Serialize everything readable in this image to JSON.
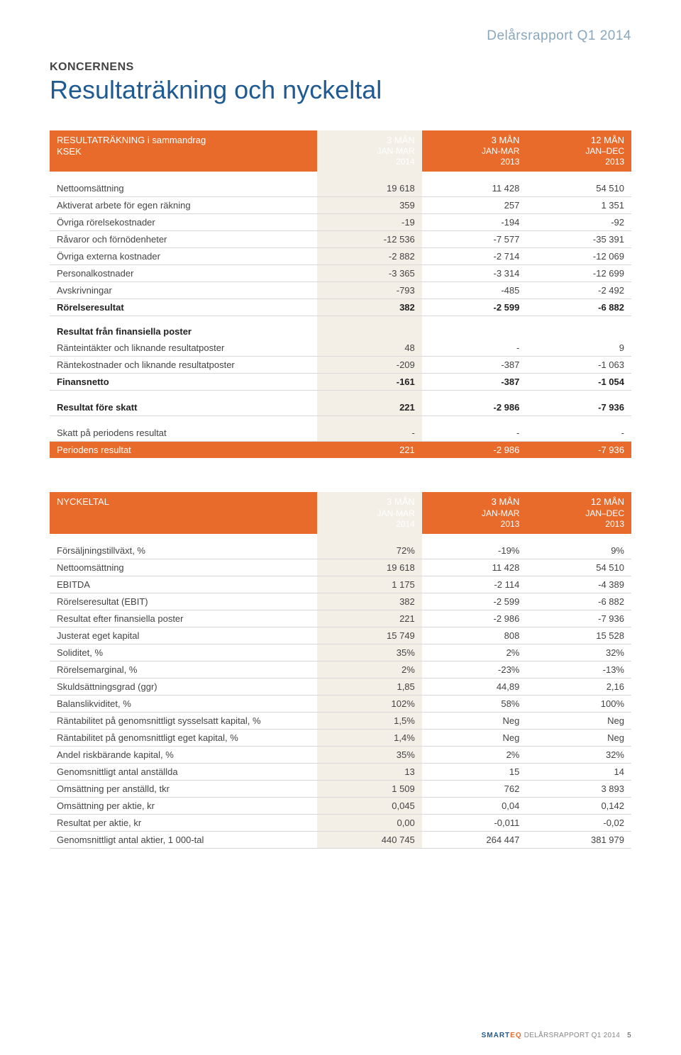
{
  "header": {
    "report_tag": "Delårsrapport Q1 2014",
    "eyebrow": "KONCERNENS",
    "title": "Resultaträkning och nyckeltal"
  },
  "table1": {
    "header": {
      "label_line1": "RESULTATRÄKNING i sammandrag",
      "label_line2": "KSEK",
      "c1_line1": "3 MÅN",
      "c1_line2": "JAN-MAR",
      "c1_line3": "2014",
      "c2_line1": "3 MÅN",
      "c2_line2": "JAN-MAR",
      "c2_line3": "2013",
      "c3_line1": "12 MÅN",
      "c3_line2": "JAN–DEC",
      "c3_line3": "2013"
    },
    "rows": [
      {
        "label": "Nettoomsättning",
        "c1": "19 618",
        "c2": "11 428",
        "c3": "54 510"
      },
      {
        "label": "Aktiverat arbete för egen räkning",
        "c1": "359",
        "c2": "257",
        "c3": "1 351"
      },
      {
        "label": "Övriga rörelsekostnader",
        "c1": "-19",
        "c2": "-194",
        "c3": "-92"
      },
      {
        "label": "Råvaror och förnödenheter",
        "c1": "-12 536",
        "c2": "-7 577",
        "c3": "-35 391"
      },
      {
        "label": "Övriga externa kostnader",
        "c1": "-2 882",
        "c2": "-2 714",
        "c3": "-12 069"
      },
      {
        "label": "Personalkostnader",
        "c1": "-3 365",
        "c2": "-3 314",
        "c3": "-12 699"
      },
      {
        "label": "Avskrivningar",
        "c1": "-793",
        "c2": "-485",
        "c3": "-2 492"
      }
    ],
    "subtotal1": {
      "label": "Rörelseresultat",
      "c1": "382",
      "c2": "-2 599",
      "c3": "-6 882"
    },
    "section2_title": "Resultat från finansiella poster",
    "rows2": [
      {
        "label": "Ränteintäkter och liknande resultatposter",
        "c1": "48",
        "c2": "-",
        "c3": "9"
      },
      {
        "label": "Räntekostnader och liknande resultatposter",
        "c1": "-209",
        "c2": "-387",
        "c3": "-1 063"
      }
    ],
    "subtotal2": {
      "label": "Finansnetto",
      "c1": "-161",
      "c2": "-387",
      "c3": "-1 054"
    },
    "pretax": {
      "label": "Resultat före skatt",
      "c1": "221",
      "c2": "-2 986",
      "c3": "-7 936"
    },
    "tax": {
      "label": "Skatt på periodens resultat",
      "c1": "-",
      "c2": "-",
      "c3": "-"
    },
    "period": {
      "label": "Periodens resultat",
      "c1": "221",
      "c2": "-2 986",
      "c3": "-7 936"
    }
  },
  "table2": {
    "header": {
      "label": "NYCKELTAL",
      "c1_line1": "3 MÅN",
      "c1_line2": "JAN-MAR",
      "c1_line3": "2014",
      "c2_line1": "3 MÅN",
      "c2_line2": "JAN-MAR",
      "c2_line3": "2013",
      "c3_line1": "12 MÅN",
      "c3_line2": "JAN–DEC",
      "c3_line3": "2013"
    },
    "rows": [
      {
        "label": "Försäljningstillväxt, %",
        "c1": "72%",
        "c2": "-19%",
        "c3": "9%"
      },
      {
        "label": "Nettoomsättning",
        "c1": "19 618",
        "c2": "11 428",
        "c3": "54 510"
      },
      {
        "label": "EBITDA",
        "c1": "1 175",
        "c2": "-2 114",
        "c3": "-4 389"
      },
      {
        "label": "Rörelseresultat (EBIT)",
        "c1": "382",
        "c2": "-2 599",
        "c3": "-6 882"
      },
      {
        "label": "Resultat efter finansiella poster",
        "c1": "221",
        "c2": "-2 986",
        "c3": "-7 936"
      },
      {
        "label": "Justerat eget kapital",
        "c1": "15 749",
        "c2": "808",
        "c3": "15 528"
      },
      {
        "label": "Soliditet, %",
        "c1": "35%",
        "c2": "2%",
        "c3": "32%"
      },
      {
        "label": "Rörelsemarginal, %",
        "c1": "2%",
        "c2": "-23%",
        "c3": "-13%"
      },
      {
        "label": "Skuldsättningsgrad (ggr)",
        "c1": "1,85",
        "c2": "44,89",
        "c3": "2,16"
      },
      {
        "label": "Balanslikviditet, %",
        "c1": "102%",
        "c2": "58%",
        "c3": "100%"
      },
      {
        "label": "Räntabilitet på genomsnittligt sysselsatt kapital, %",
        "c1": "1,5%",
        "c2": "Neg",
        "c3": "Neg"
      },
      {
        "label": "Räntabilitet på genomsnittligt eget kapital, %",
        "c1": "1,4%",
        "c2": "Neg",
        "c3": "Neg"
      },
      {
        "label": "Andel riskbärande kapital, %",
        "c1": "35%",
        "c2": "2%",
        "c3": "32%"
      },
      {
        "label": "Genomsnittligt antal anställda",
        "c1": "13",
        "c2": "15",
        "c3": "14"
      },
      {
        "label": "Omsättning per anställd, tkr",
        "c1": "1 509",
        "c2": "762",
        "c3": "3 893"
      },
      {
        "label": "Omsättning per aktie, kr",
        "c1": "0,045",
        "c2": "0,04",
        "c3": "0,142"
      },
      {
        "label": "Resultat per aktie, kr",
        "c1": "0,00",
        "c2": "-0,011",
        "c3": "-0,02"
      },
      {
        "label": "Genomsnittligt antal aktier, 1 000-tal",
        "c1": "440 745",
        "c2": "264 447",
        "c3": "381 979"
      }
    ]
  },
  "footer": {
    "brand1": "SMART",
    "brand2": "EQ",
    "text": " DELÅRSRAPPORT Q1 2014",
    "page": "5"
  },
  "colors": {
    "accent_orange": "#e96b2c",
    "accent_blue": "#1f5a92",
    "header_blue": "#8ba7bc",
    "hl_bg": "#f3efe6",
    "rule": "#d8d8d8"
  }
}
